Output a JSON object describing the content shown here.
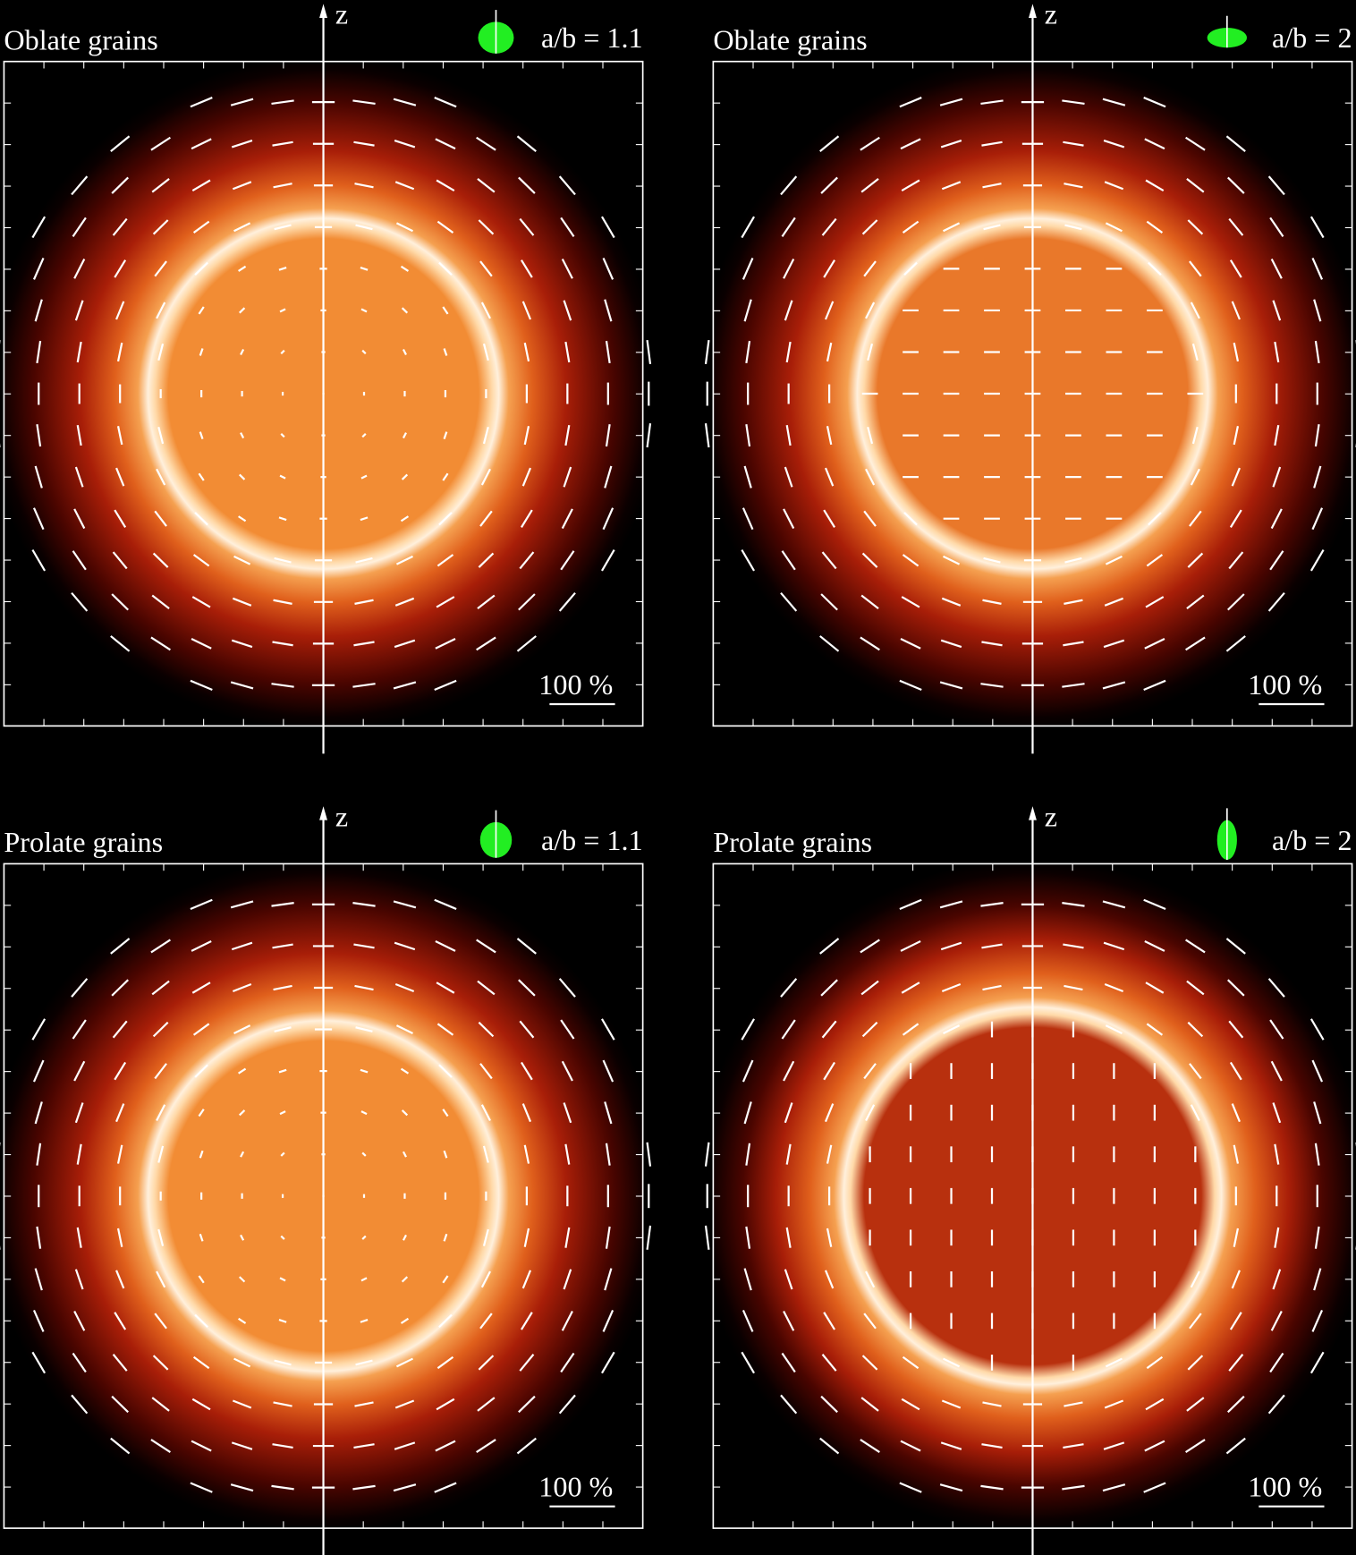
{
  "panels": [
    {
      "title": "Oblate grains",
      "ratio_label": "a/b = 1.1",
      "axis_label": "z",
      "scale_label": "100 %"
    },
    {
      "title": "Oblate grains",
      "ratio_label": "a/b = 2",
      "axis_label": "z",
      "scale_label": "100 %"
    },
    {
      "title": "Prolate grains",
      "ratio_label": "a/b = 1.1",
      "axis_label": "z",
      "scale_label": "100 %"
    },
    {
      "title": "Prolate grains",
      "ratio_label": "a/b = 2",
      "axis_label": "z",
      "scale_label": "100 %"
    }
  ]
}
